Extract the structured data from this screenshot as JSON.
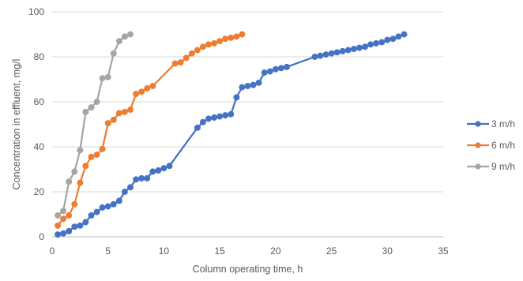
{
  "chart_data": {
    "type": "line",
    "title": "",
    "xlabel": "Column operating time, h",
    "ylabel": "Concentration in effluent, mg/l",
    "xlim": [
      0,
      35
    ],
    "ylim": [
      0,
      100
    ],
    "xticks": [
      0,
      5,
      10,
      15,
      20,
      25,
      30,
      35
    ],
    "yticks": [
      0,
      20,
      40,
      60,
      80,
      100
    ],
    "grid": "horizontal",
    "legend_position": "right",
    "series": [
      {
        "name": "3 m/h",
        "color": "#4472C4",
        "x": [
          0.5,
          1.0,
          1.5,
          2.0,
          2.5,
          3.0,
          3.5,
          4.0,
          4.5,
          5.0,
          5.5,
          6.0,
          6.5,
          7.0,
          7.5,
          8.0,
          8.5,
          9.0,
          9.5,
          10.0,
          10.5,
          13.0,
          13.5,
          14.0,
          14.5,
          15.0,
          15.5,
          16.0,
          16.5,
          17.0,
          17.5,
          18.0,
          18.5,
          19.0,
          19.5,
          20.0,
          20.5,
          21.0,
          23.5,
          24.0,
          24.5,
          25.0,
          25.5,
          26.0,
          26.5,
          27.0,
          27.5,
          28.0,
          28.5,
          29.0,
          29.5,
          30.0,
          30.5,
          31.0,
          31.5
        ],
        "y": [
          1,
          1.5,
          2.5,
          4.5,
          5,
          6.5,
          9.5,
          11,
          13,
          13.5,
          14.5,
          16,
          20,
          22,
          25.5,
          26,
          26,
          29,
          29.5,
          30.5,
          31.5,
          48.5,
          51,
          52.5,
          53,
          53.5,
          54,
          54.5,
          62,
          66.5,
          67,
          67.5,
          68.5,
          73,
          73.5,
          74.5,
          75,
          75.5,
          80,
          80.5,
          81,
          81.5,
          82,
          82.5,
          83,
          83.5,
          84,
          84.5,
          85.5,
          86,
          86.5,
          87.5,
          88,
          89,
          90
        ]
      },
      {
        "name": "6 m/h",
        "color": "#ED7D31",
        "x": [
          0.5,
          1.0,
          1.5,
          2.0,
          2.5,
          3.0,
          3.5,
          4.0,
          4.5,
          5.0,
          5.5,
          6.0,
          6.5,
          7.0,
          7.5,
          8.0,
          8.5,
          9.0,
          11.0,
          11.5,
          12.0,
          12.5,
          13.0,
          13.5,
          14.0,
          14.5,
          15.0,
          15.5,
          16.0,
          16.5,
          17.0
        ],
        "y": [
          5,
          8,
          9.5,
          14.5,
          24,
          31.5,
          35.5,
          36.5,
          39,
          50.5,
          52,
          55,
          55.5,
          56.5,
          63.5,
          64.5,
          66,
          67,
          77,
          77.5,
          79.5,
          81.5,
          83,
          84.5,
          85.5,
          86,
          87,
          88,
          88.5,
          89,
          90
        ]
      },
      {
        "name": "9 m/h",
        "color": "#A5A5A5",
        "x": [
          0.5,
          1.0,
          1.5,
          2.0,
          2.5,
          3.0,
          3.5,
          4.0,
          4.5,
          5.0,
          5.5,
          6.0,
          6.5,
          7.0
        ],
        "y": [
          9.5,
          11.5,
          24.5,
          29,
          38.5,
          55.5,
          57.5,
          60,
          70.5,
          71,
          81.5,
          87,
          89,
          90
        ]
      }
    ]
  }
}
